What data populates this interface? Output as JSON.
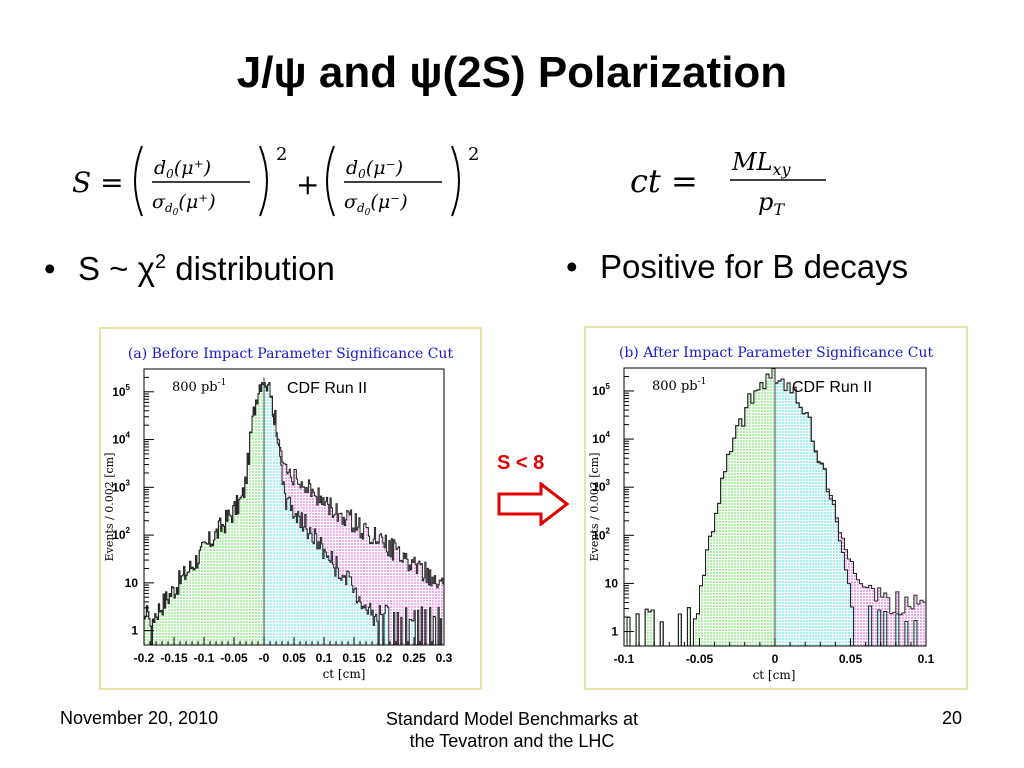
{
  "slide": {
    "title": "J/ψ and ψ(2S) Polarization",
    "formula_left": {
      "lhs": "S =",
      "num1": "d",
      "num1_sub": "0",
      "num1_arg": "(μ⁺)",
      "den1": "σ",
      "den1_sub": "d",
      "den1_subsub": "0",
      "den1_arg": "(μ⁺)",
      "plus": "+",
      "num2": "d",
      "num2_sub": "0",
      "num2_arg": "(μ⁻)",
      "den2": "σ",
      "den2_sub": "d",
      "den2_subsub": "0",
      "den2_arg": "(μ⁻)",
      "power": "2"
    },
    "formula_right": {
      "lhs": "ct =",
      "num": "M",
      "num_L": "L",
      "num_sub": "xy",
      "den": "p",
      "den_sub": "T"
    },
    "bullet_left": {
      "text": "S ~ χ",
      "sup": "2",
      "rest": " distribution"
    },
    "bullet_right": {
      "text": "Positive for B decays"
    },
    "arrow_label": "S < 8",
    "footer": {
      "date": "November 20, 2010",
      "center_line1": "Standard Model Benchmarks at",
      "center_line2": "the Tevatron and the LHC",
      "page": "20"
    }
  },
  "colors": {
    "panel_border": "#e8e4a8",
    "title_blue": "#1818c8",
    "arrow_red": "#e00000",
    "green_fill": "#a8f0a0",
    "cyan_fill": "#a0f0f0",
    "magenta_fill": "#f0a8f0"
  },
  "chart_data": [
    {
      "type": "histogram",
      "title": "(a) Before Impact Parameter Significance Cut",
      "luminosity": "800 pb",
      "luminosity_sup": "-1",
      "experiment": "CDF Run II",
      "xlabel": "ct [cm]",
      "ylabel": "Events / 0.002 [cm]",
      "log_y": true,
      "xlim": [
        -0.2,
        0.3
      ],
      "ylim": [
        0.5,
        300000
      ],
      "x_ticks": [
        -0.2,
        -0.15,
        -0.1,
        -0.05,
        0,
        0.05,
        0.1,
        0.15,
        0.2,
        0.25,
        0.3
      ],
      "x_tick_labels": [
        "-0.2",
        "-0.15",
        "-0.1",
        "-0.05",
        "-0",
        "0.05",
        "0.1",
        "0.15",
        "0.2",
        "0.25",
        "0.3"
      ],
      "y_ticks": [
        1,
        10,
        100,
        1000,
        10000,
        100000
      ],
      "y_tick_labels": [
        {
          "base": "1",
          "exp": ""
        },
        {
          "base": "10",
          "exp": ""
        },
        {
          "base": "10",
          "exp": "2"
        },
        {
          "base": "10",
          "exp": "3"
        },
        {
          "base": "10",
          "exp": "4"
        },
        {
          "base": "10",
          "exp": "5"
        }
      ],
      "prompt_width": 0.009,
      "prompt_peak": 200000,
      "neg_tail": {
        "amp": 2200,
        "slope": 38,
        "floor_x": -0.2,
        "end_value": 2
      },
      "pos_tail": {
        "amp": 3500,
        "slope": 20,
        "end_x": 0.3,
        "end_value": 6
      },
      "prompt_pos_tail": {
        "amp": 2200,
        "slope": 38,
        "end_x": 0.19
      }
    },
    {
      "type": "histogram",
      "title": "(b) After Impact Parameter Significance Cut",
      "luminosity": "800 pb",
      "luminosity_sup": "-1",
      "experiment": "CDF Run II",
      "xlabel": "ct [cm]",
      "ylabel": "Events / 0.002 [cm]",
      "log_y": true,
      "xlim": [
        -0.1,
        0.1
      ],
      "ylim": [
        0.5,
        300000
      ],
      "x_ticks": [
        -0.1,
        -0.05,
        0,
        0.05,
        0.1
      ],
      "x_tick_labels": [
        "-0.1",
        "-0.05",
        "0",
        "0.05",
        "0.1"
      ],
      "y_ticks": [
        1,
        10,
        100,
        1000,
        10000,
        100000
      ],
      "y_tick_labels": [
        {
          "base": "1",
          "exp": ""
        },
        {
          "base": "10",
          "exp": ""
        },
        {
          "base": "10",
          "exp": "2"
        },
        {
          "base": "10",
          "exp": "3"
        },
        {
          "base": "10",
          "exp": "4"
        },
        {
          "base": "10",
          "exp": "5"
        }
      ],
      "prompt_width": 0.011,
      "prompt_peak": 180000,
      "neg_tail": {
        "amp": 0,
        "slope": 0,
        "floor_x": -0.1,
        "end_value": 1
      },
      "pos_tail": {
        "amp": 2500,
        "slope": 95,
        "end_x": 0.1,
        "end_value": 3
      },
      "prompt_pos_tail": {
        "amp": 0,
        "slope": 0,
        "end_x": 0.07
      }
    }
  ]
}
